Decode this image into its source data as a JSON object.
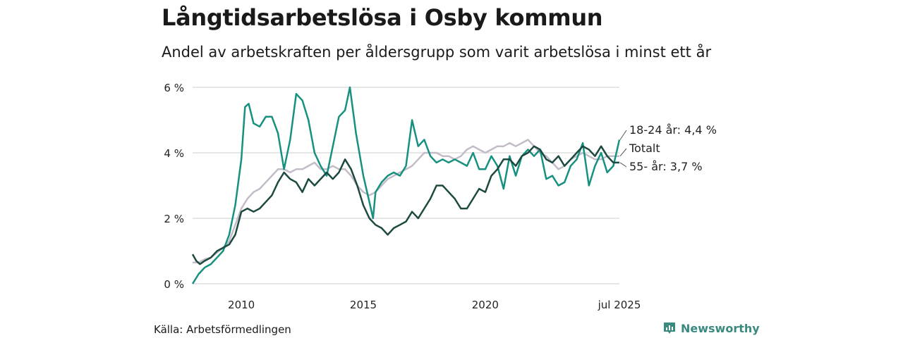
{
  "title": "Långtidsarbetslösa i Osby kommun",
  "subtitle": "Andel av arbetskraften per åldersgrupp som varit arbetslösa i minst ett år",
  "source": "Källa: Arbetsförmedlingen",
  "brand": "Newsworthy",
  "colors": {
    "youth": "#17917f",
    "total": "#c3bcc8",
    "senior": "#1d4a40",
    "grid": "#dddddd",
    "brand": "#3a8a80"
  },
  "chart_data": {
    "type": "line",
    "title": "Långtidsarbetslösa i Osby kommun",
    "subtitle": "Andel av arbetskraften per åldersgrupp som varit arbetslösa i minst ett år",
    "xlabel": "",
    "ylabel": "",
    "x_range": [
      "2008-01",
      "2025-07"
    ],
    "ylim": [
      0,
      6
    ],
    "y_ticks": [
      0,
      2,
      4,
      6
    ],
    "y_tick_labels": [
      "0 %",
      "2 %",
      "4 %",
      "6 %"
    ],
    "x_ticks": [
      2010,
      2015,
      2020,
      2025.5
    ],
    "x_tick_labels": [
      "2010",
      "2015",
      "2020",
      "jul 2025"
    ],
    "grid": true,
    "end_labels": [
      "18-24 år: 4,4 %",
      "Totalt",
      "55- år: 3,7 %"
    ],
    "series": [
      {
        "name": "18-24 år",
        "end_label": "18-24 år: 4,4 %",
        "points": [
          [
            2008.0,
            0.0
          ],
          [
            2008.25,
            0.3
          ],
          [
            2008.5,
            0.5
          ],
          [
            2008.75,
            0.6
          ],
          [
            2009.0,
            0.8
          ],
          [
            2009.25,
            1.0
          ],
          [
            2009.5,
            1.5
          ],
          [
            2009.75,
            2.4
          ],
          [
            2010.0,
            3.8
          ],
          [
            2010.15,
            5.4
          ],
          [
            2010.3,
            5.5
          ],
          [
            2010.5,
            4.9
          ],
          [
            2010.75,
            4.8
          ],
          [
            2011.0,
            5.1
          ],
          [
            2011.25,
            5.1
          ],
          [
            2011.5,
            4.6
          ],
          [
            2011.75,
            3.5
          ],
          [
            2012.0,
            4.4
          ],
          [
            2012.25,
            5.8
          ],
          [
            2012.5,
            5.6
          ],
          [
            2012.75,
            5.0
          ],
          [
            2013.0,
            4.0
          ],
          [
            2013.25,
            3.6
          ],
          [
            2013.5,
            3.3
          ],
          [
            2013.75,
            4.2
          ],
          [
            2014.0,
            5.1
          ],
          [
            2014.25,
            5.3
          ],
          [
            2014.45,
            6.0
          ],
          [
            2014.7,
            4.6
          ],
          [
            2015.0,
            3.3
          ],
          [
            2015.25,
            2.5
          ],
          [
            2015.4,
            2.0
          ],
          [
            2015.5,
            2.8
          ],
          [
            2015.75,
            3.1
          ],
          [
            2016.0,
            3.3
          ],
          [
            2016.25,
            3.4
          ],
          [
            2016.5,
            3.3
          ],
          [
            2016.75,
            3.6
          ],
          [
            2017.0,
            5.0
          ],
          [
            2017.25,
            4.2
          ],
          [
            2017.5,
            4.4
          ],
          [
            2017.75,
            3.9
          ],
          [
            2018.0,
            3.7
          ],
          [
            2018.25,
            3.8
          ],
          [
            2018.5,
            3.7
          ],
          [
            2018.75,
            3.8
          ],
          [
            2019.0,
            3.7
          ],
          [
            2019.25,
            3.6
          ],
          [
            2019.5,
            4.0
          ],
          [
            2019.75,
            3.5
          ],
          [
            2020.0,
            3.5
          ],
          [
            2020.25,
            3.9
          ],
          [
            2020.5,
            3.6
          ],
          [
            2020.75,
            2.9
          ],
          [
            2021.0,
            3.9
          ],
          [
            2021.25,
            3.3
          ],
          [
            2021.5,
            3.9
          ],
          [
            2021.75,
            4.1
          ],
          [
            2022.0,
            3.9
          ],
          [
            2022.25,
            4.1
          ],
          [
            2022.5,
            3.2
          ],
          [
            2022.75,
            3.3
          ],
          [
            2023.0,
            3.0
          ],
          [
            2023.25,
            3.1
          ],
          [
            2023.5,
            3.6
          ],
          [
            2023.75,
            3.8
          ],
          [
            2024.0,
            4.3
          ],
          [
            2024.25,
            3.0
          ],
          [
            2024.5,
            3.6
          ],
          [
            2024.75,
            4.0
          ],
          [
            2025.0,
            3.4
          ],
          [
            2025.25,
            3.6
          ],
          [
            2025.5,
            4.4
          ]
        ]
      },
      {
        "name": "Totalt",
        "end_label": "Totalt",
        "points": [
          [
            2008.0,
            0.65
          ],
          [
            2008.25,
            0.65
          ],
          [
            2008.5,
            0.75
          ],
          [
            2008.75,
            0.8
          ],
          [
            2009.0,
            0.95
          ],
          [
            2009.25,
            1.1
          ],
          [
            2009.5,
            1.3
          ],
          [
            2009.75,
            1.8
          ],
          [
            2010.0,
            2.3
          ],
          [
            2010.25,
            2.6
          ],
          [
            2010.5,
            2.8
          ],
          [
            2010.75,
            2.9
          ],
          [
            2011.0,
            3.1
          ],
          [
            2011.25,
            3.3
          ],
          [
            2011.5,
            3.5
          ],
          [
            2011.75,
            3.5
          ],
          [
            2012.0,
            3.4
          ],
          [
            2012.25,
            3.5
          ],
          [
            2012.5,
            3.5
          ],
          [
            2012.75,
            3.6
          ],
          [
            2013.0,
            3.7
          ],
          [
            2013.25,
            3.5
          ],
          [
            2013.5,
            3.5
          ],
          [
            2013.75,
            3.6
          ],
          [
            2014.0,
            3.5
          ],
          [
            2014.25,
            3.5
          ],
          [
            2014.5,
            3.3
          ],
          [
            2014.75,
            3.0
          ],
          [
            2015.0,
            2.8
          ],
          [
            2015.25,
            2.7
          ],
          [
            2015.5,
            2.8
          ],
          [
            2015.75,
            3.0
          ],
          [
            2016.0,
            3.2
          ],
          [
            2016.25,
            3.3
          ],
          [
            2016.5,
            3.4
          ],
          [
            2016.75,
            3.5
          ],
          [
            2017.0,
            3.6
          ],
          [
            2017.25,
            3.8
          ],
          [
            2017.5,
            4.0
          ],
          [
            2017.75,
            4.0
          ],
          [
            2018.0,
            4.0
          ],
          [
            2018.25,
            3.9
          ],
          [
            2018.5,
            3.9
          ],
          [
            2018.75,
            3.8
          ],
          [
            2019.0,
            3.9
          ],
          [
            2019.25,
            4.1
          ],
          [
            2019.5,
            4.2
          ],
          [
            2019.75,
            4.1
          ],
          [
            2020.0,
            4.0
          ],
          [
            2020.25,
            4.1
          ],
          [
            2020.5,
            4.2
          ],
          [
            2020.75,
            4.2
          ],
          [
            2021.0,
            4.3
          ],
          [
            2021.25,
            4.2
          ],
          [
            2021.5,
            4.3
          ],
          [
            2021.75,
            4.4
          ],
          [
            2022.0,
            4.2
          ],
          [
            2022.25,
            4.0
          ],
          [
            2022.5,
            3.9
          ],
          [
            2022.75,
            3.7
          ],
          [
            2023.0,
            3.5
          ],
          [
            2023.25,
            3.6
          ],
          [
            2023.5,
            3.8
          ],
          [
            2023.75,
            3.9
          ],
          [
            2024.0,
            4.0
          ],
          [
            2024.25,
            3.9
          ],
          [
            2024.5,
            3.8
          ],
          [
            2024.75,
            3.8
          ],
          [
            2025.0,
            3.9
          ],
          [
            2025.25,
            3.9
          ],
          [
            2025.5,
            3.9
          ]
        ]
      },
      {
        "name": "55- år",
        "end_label": "55- år: 3,7 %",
        "points": [
          [
            2008.0,
            0.9
          ],
          [
            2008.15,
            0.7
          ],
          [
            2008.3,
            0.6
          ],
          [
            2008.5,
            0.7
          ],
          [
            2008.75,
            0.8
          ],
          [
            2009.0,
            1.0
          ],
          [
            2009.25,
            1.1
          ],
          [
            2009.5,
            1.2
          ],
          [
            2009.75,
            1.5
          ],
          [
            2010.0,
            2.2
          ],
          [
            2010.25,
            2.3
          ],
          [
            2010.5,
            2.2
          ],
          [
            2010.75,
            2.3
          ],
          [
            2011.0,
            2.5
          ],
          [
            2011.25,
            2.7
          ],
          [
            2011.5,
            3.1
          ],
          [
            2011.75,
            3.4
          ],
          [
            2012.0,
            3.2
          ],
          [
            2012.25,
            3.1
          ],
          [
            2012.5,
            2.8
          ],
          [
            2012.75,
            3.2
          ],
          [
            2013.0,
            3.0
          ],
          [
            2013.25,
            3.2
          ],
          [
            2013.5,
            3.4
          ],
          [
            2013.75,
            3.2
          ],
          [
            2014.0,
            3.4
          ],
          [
            2014.25,
            3.8
          ],
          [
            2014.5,
            3.5
          ],
          [
            2014.75,
            3.0
          ],
          [
            2015.0,
            2.4
          ],
          [
            2015.25,
            2.0
          ],
          [
            2015.5,
            1.8
          ],
          [
            2015.75,
            1.7
          ],
          [
            2016.0,
            1.5
          ],
          [
            2016.25,
            1.7
          ],
          [
            2016.5,
            1.8
          ],
          [
            2016.75,
            1.9
          ],
          [
            2017.0,
            2.2
          ],
          [
            2017.25,
            2.0
          ],
          [
            2017.5,
            2.3
          ],
          [
            2017.75,
            2.6
          ],
          [
            2018.0,
            3.0
          ],
          [
            2018.25,
            3.0
          ],
          [
            2018.5,
            2.8
          ],
          [
            2018.75,
            2.6
          ],
          [
            2019.0,
            2.3
          ],
          [
            2019.25,
            2.3
          ],
          [
            2019.5,
            2.6
          ],
          [
            2019.75,
            2.9
          ],
          [
            2020.0,
            2.8
          ],
          [
            2020.25,
            3.3
          ],
          [
            2020.5,
            3.5
          ],
          [
            2020.75,
            3.8
          ],
          [
            2021.0,
            3.8
          ],
          [
            2021.25,
            3.6
          ],
          [
            2021.5,
            3.9
          ],
          [
            2021.75,
            4.0
          ],
          [
            2022.0,
            4.2
          ],
          [
            2022.25,
            4.1
          ],
          [
            2022.5,
            3.8
          ],
          [
            2022.75,
            3.7
          ],
          [
            2023.0,
            3.9
          ],
          [
            2023.25,
            3.6
          ],
          [
            2023.5,
            3.8
          ],
          [
            2023.75,
            4.0
          ],
          [
            2024.0,
            4.2
          ],
          [
            2024.25,
            4.1
          ],
          [
            2024.5,
            3.9
          ],
          [
            2024.75,
            4.2
          ],
          [
            2025.0,
            3.9
          ],
          [
            2025.25,
            3.7
          ],
          [
            2025.5,
            3.7
          ]
        ]
      }
    ]
  }
}
